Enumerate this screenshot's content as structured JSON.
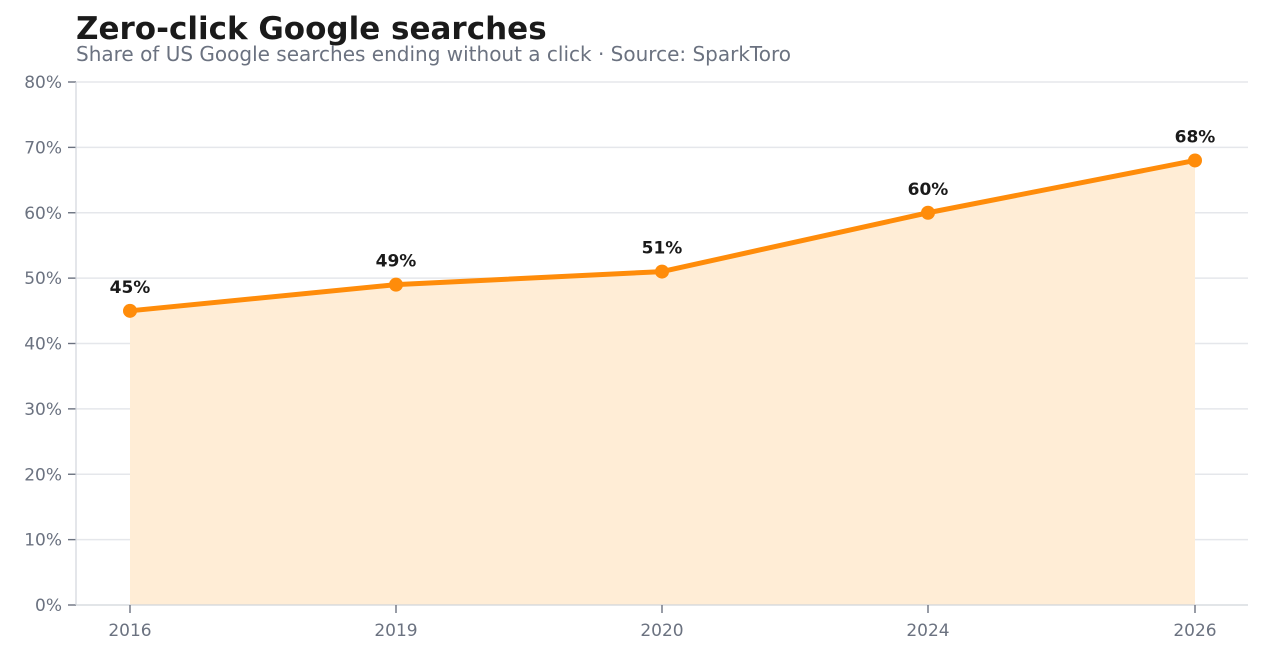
{
  "chart_data": {
    "type": "area",
    "title": "Zero-click Google searches",
    "subtitle": "Share of US Google searches ending without a click · Source: SparkToro",
    "categories": [
      "2016",
      "2019",
      "2020",
      "2024",
      "2026"
    ],
    "series": [
      {
        "values": [
          45,
          49,
          51,
          60,
          68
        ]
      }
    ],
    "data_labels": [
      "45%",
      "49%",
      "51%",
      "60%",
      "68%"
    ],
    "y_ticks": [
      "0%",
      "10%",
      "20%",
      "30%",
      "40%",
      "50%",
      "60%",
      "70%",
      "80%"
    ],
    "ylim": [
      0,
      80
    ],
    "grid": true,
    "legend": false,
    "colors": {
      "line": "#ff8c0a",
      "fill": "#ffedd6",
      "grid": "#e5e7eb",
      "axis": "#d1d5db"
    }
  }
}
